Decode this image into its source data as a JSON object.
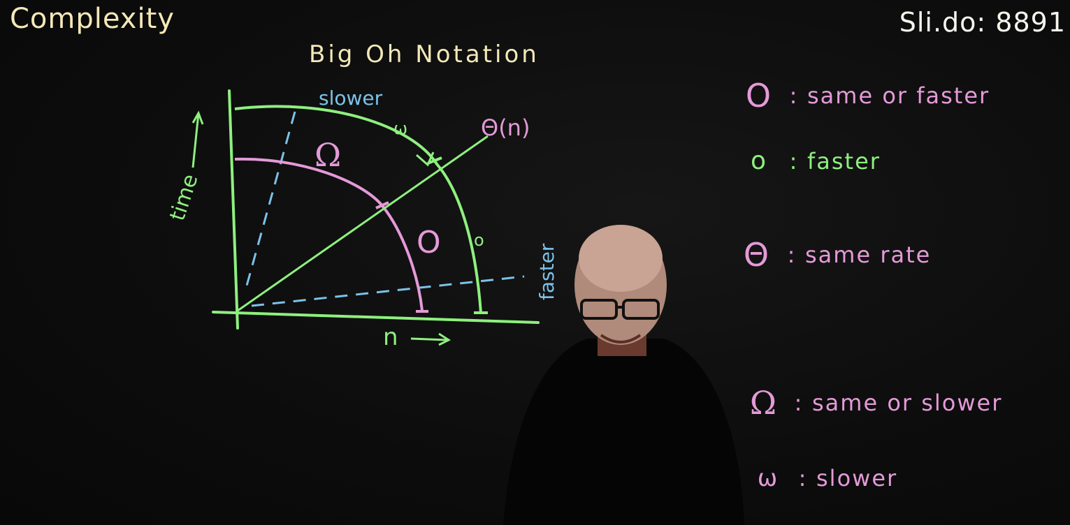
{
  "board": {
    "corner_title": "Complexity",
    "slido": "Sli.do: 8891",
    "heading": "Big Oh Notation"
  },
  "diagram": {
    "y_axis_label": "time",
    "x_axis_label": "n",
    "top_label": "slower",
    "right_label": "faster",
    "theta_label": "Θ(n)",
    "omega_small_label": "ω",
    "omega_label": "Ω",
    "big_o_label": "O",
    "little_o_label": "o"
  },
  "legend": [
    {
      "symbol": "O",
      "colon": ":",
      "text": "same or faster",
      "color": "#e49ad8"
    },
    {
      "symbol": "o",
      "colon": ":",
      "text": "faster",
      "color": "#8ef07e"
    },
    {
      "symbol": "Θ",
      "colon": ":",
      "text": "same rate",
      "color": "#e49ad8"
    },
    {
      "symbol": "Ω",
      "colon": ":",
      "text": "same or slower",
      "color": "#e49ad8"
    },
    {
      "symbol": "ω",
      "colon": ":",
      "text": "slower",
      "color": "#e49ad8"
    }
  ],
  "colors": {
    "chalk_green": "#8ef07e",
    "chalk_pink": "#e49ad8",
    "chalk_blue": "#7cc2e8",
    "chalk_yellow": "#f3e8b8"
  }
}
